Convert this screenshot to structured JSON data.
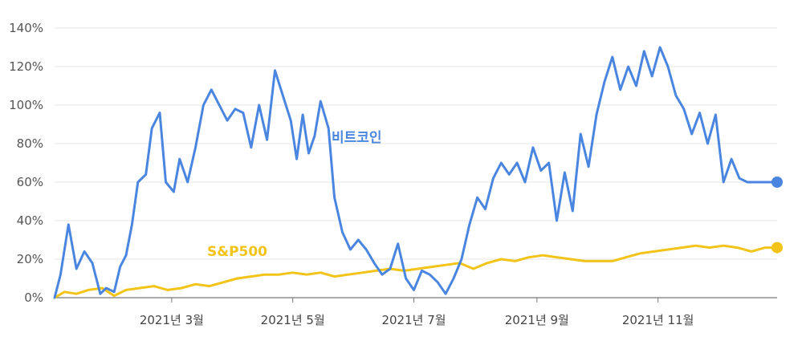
{
  "chart_data": {
    "type": "line",
    "title": "",
    "xlabel": "",
    "ylabel": "",
    "ylim": [
      0,
      140
    ],
    "y_ticks": [
      0,
      20,
      40,
      60,
      80,
      100,
      120,
      140
    ],
    "y_tick_labels": [
      "0%",
      "20%",
      "40%",
      "60%",
      "80%",
      "100%",
      "120%",
      "140%"
    ],
    "x_tick_labels": [
      "2021년 3월",
      "2021년 5월",
      "2021년 7월",
      "2021년 9월",
      "2021년 11월"
    ],
    "x_tick_dates": [
      "2021-03-01",
      "2021-05-01",
      "2021-07-01",
      "2021-09-01",
      "2021-11-01"
    ],
    "xlim": [
      "2021-01-01",
      "2021-12-31"
    ],
    "grid": true,
    "series": [
      {
        "name": "비트코인",
        "color": "#4a86e0",
        "x": [
          "2021-01-01",
          "2021-01-04",
          "2021-01-08",
          "2021-01-12",
          "2021-01-16",
          "2021-01-20",
          "2021-01-24",
          "2021-01-27",
          "2021-01-31",
          "2021-02-03",
          "2021-02-06",
          "2021-02-09",
          "2021-02-12",
          "2021-02-16",
          "2021-02-19",
          "2021-02-23",
          "2021-02-26",
          "2021-03-02",
          "2021-03-05",
          "2021-03-09",
          "2021-03-13",
          "2021-03-17",
          "2021-03-21",
          "2021-03-25",
          "2021-03-29",
          "2021-04-02",
          "2021-04-06",
          "2021-04-10",
          "2021-04-14",
          "2021-04-18",
          "2021-04-22",
          "2021-04-26",
          "2021-04-30",
          "2021-05-03",
          "2021-05-06",
          "2021-05-09",
          "2021-05-12",
          "2021-05-15",
          "2021-05-19",
          "2021-05-22",
          "2021-05-26",
          "2021-05-30",
          "2021-06-03",
          "2021-06-07",
          "2021-06-11",
          "2021-06-15",
          "2021-06-19",
          "2021-06-23",
          "2021-06-27",
          "2021-07-01",
          "2021-07-05",
          "2021-07-09",
          "2021-07-13",
          "2021-07-17",
          "2021-07-21",
          "2021-07-25",
          "2021-07-29",
          "2021-08-02",
          "2021-08-06",
          "2021-08-10",
          "2021-08-14",
          "2021-08-18",
          "2021-08-22",
          "2021-08-26",
          "2021-08-30",
          "2021-09-03",
          "2021-09-07",
          "2021-09-11",
          "2021-09-15",
          "2021-09-19",
          "2021-09-23",
          "2021-09-27",
          "2021-10-01",
          "2021-10-05",
          "2021-10-09",
          "2021-10-13",
          "2021-10-17",
          "2021-10-21",
          "2021-10-25",
          "2021-10-29",
          "2021-11-02",
          "2021-11-06",
          "2021-11-10",
          "2021-11-14",
          "2021-11-18",
          "2021-11-22",
          "2021-11-26",
          "2021-11-30",
          "2021-12-04",
          "2021-12-08",
          "2021-12-12",
          "2021-12-16",
          "2021-12-20",
          "2021-12-24",
          "2021-12-28",
          "2021-12-31"
        ],
        "values": [
          0,
          12,
          38,
          15,
          24,
          18,
          2,
          5,
          3,
          16,
          22,
          38,
          60,
          64,
          88,
          96,
          60,
          55,
          72,
          60,
          78,
          100,
          108,
          100,
          92,
          98,
          96,
          78,
          100,
          82,
          118,
          105,
          92,
          72,
          95,
          75,
          84,
          102,
          88,
          52,
          34,
          25,
          30,
          25,
          18,
          12,
          15,
          28,
          10,
          4,
          14,
          12,
          8,
          2,
          10,
          20,
          38,
          52,
          46,
          62,
          70,
          64,
          70,
          60,
          78,
          66,
          70,
          40,
          65,
          45,
          85,
          68,
          95,
          112,
          125,
          108,
          120,
          110,
          128,
          115,
          130,
          120,
          105,
          98,
          85,
          96,
          80,
          95,
          60,
          72,
          62,
          60,
          60,
          60,
          60,
          60
        ]
      },
      {
        "name": "S&P500",
        "color": "#f2c318",
        "x": [
          "2021-01-01",
          "2021-01-06",
          "2021-01-12",
          "2021-01-18",
          "2021-01-25",
          "2021-01-31",
          "2021-02-06",
          "2021-02-13",
          "2021-02-20",
          "2021-02-27",
          "2021-03-06",
          "2021-03-13",
          "2021-03-20",
          "2021-03-27",
          "2021-04-03",
          "2021-04-10",
          "2021-04-17",
          "2021-04-24",
          "2021-05-01",
          "2021-05-08",
          "2021-05-15",
          "2021-05-22",
          "2021-05-29",
          "2021-06-05",
          "2021-06-12",
          "2021-06-19",
          "2021-06-26",
          "2021-07-03",
          "2021-07-10",
          "2021-07-17",
          "2021-07-24",
          "2021-07-31",
          "2021-08-07",
          "2021-08-14",
          "2021-08-21",
          "2021-08-28",
          "2021-09-04",
          "2021-09-11",
          "2021-09-18",
          "2021-09-25",
          "2021-10-02",
          "2021-10-09",
          "2021-10-16",
          "2021-10-23",
          "2021-10-30",
          "2021-11-06",
          "2021-11-13",
          "2021-11-20",
          "2021-11-27",
          "2021-12-04",
          "2021-12-11",
          "2021-12-18",
          "2021-12-25",
          "2021-12-31"
        ],
        "values": [
          0,
          3,
          2,
          4,
          5,
          1,
          4,
          5,
          6,
          4,
          5,
          7,
          6,
          8,
          10,
          11,
          12,
          12,
          13,
          12,
          13,
          11,
          12,
          13,
          14,
          15,
          14,
          15,
          16,
          17,
          18,
          15,
          18,
          20,
          19,
          21,
          22,
          21,
          20,
          19,
          19,
          19,
          21,
          23,
          24,
          25,
          26,
          27,
          26,
          27,
          26,
          24,
          26,
          26
        ]
      }
    ],
    "annotations": [
      {
        "text": "비트코인",
        "series": 0
      },
      {
        "text": "S&P500",
        "series": 1
      }
    ]
  }
}
